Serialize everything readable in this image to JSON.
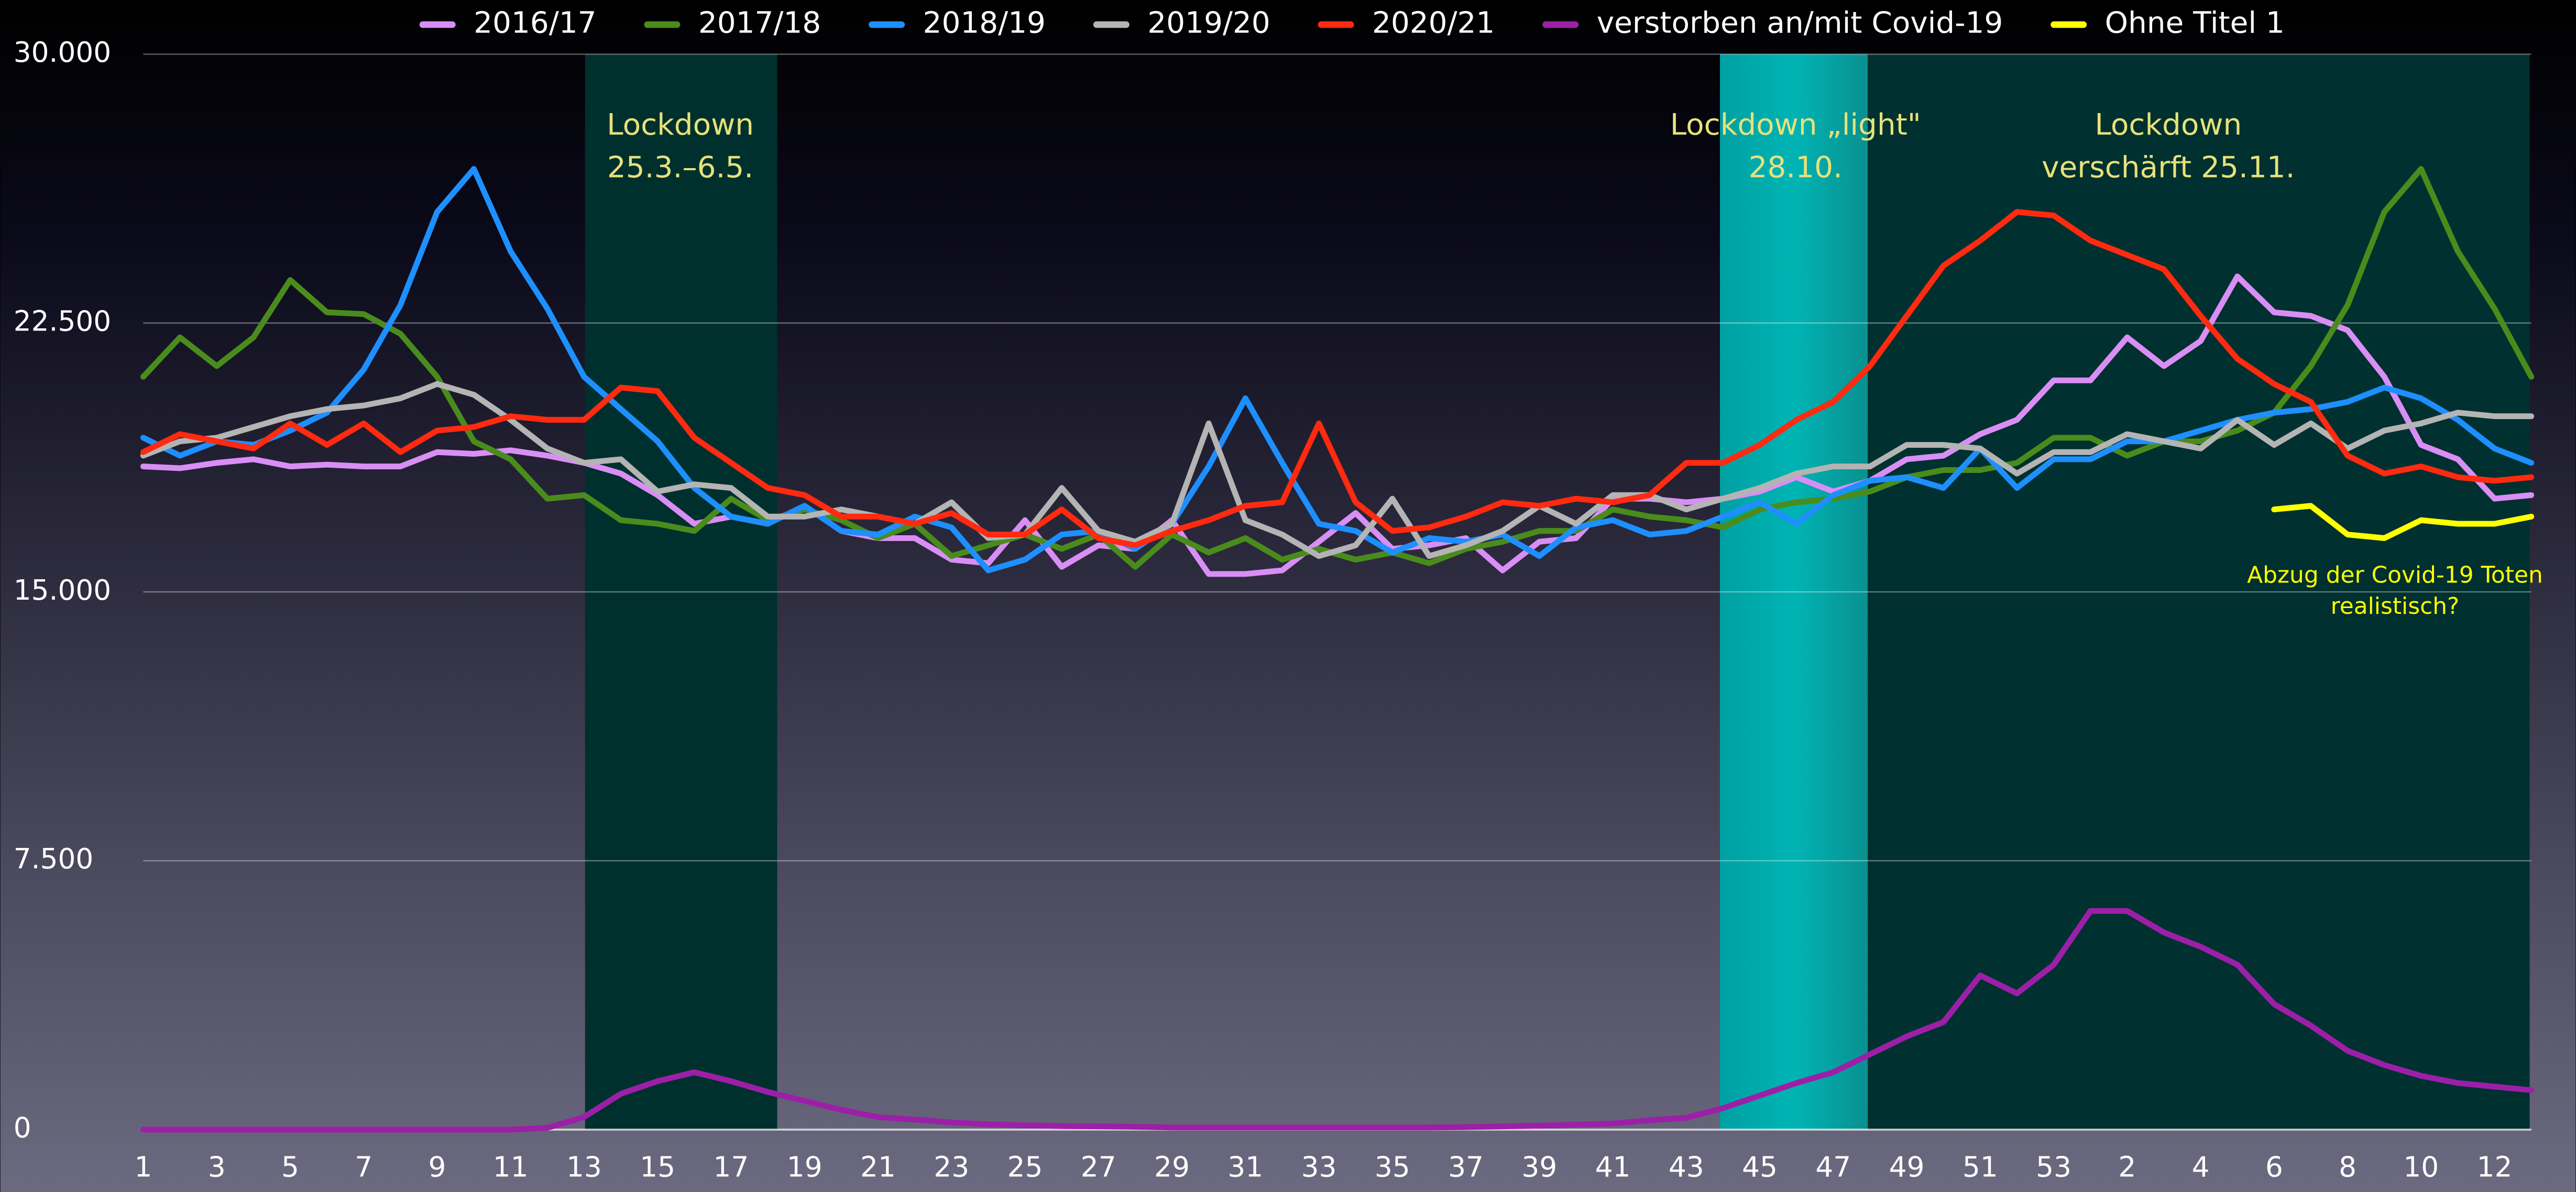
{
  "chart_data": {
    "type": "line",
    "categories": [
      1,
      null,
      3,
      null,
      5,
      null,
      7,
      null,
      9,
      null,
      11,
      null,
      13,
      null,
      15,
      null,
      17,
      null,
      19,
      null,
      21,
      null,
      23,
      null,
      25,
      null,
      27,
      null,
      29,
      null,
      31,
      null,
      33,
      null,
      35,
      null,
      37,
      null,
      39,
      null,
      41,
      null,
      43,
      null,
      45,
      null,
      47,
      null,
      49,
      null,
      51,
      null,
      53,
      null,
      2,
      null,
      4,
      null,
      6,
      null,
      8,
      null,
      10,
      null,
      12,
      null
    ],
    "ylim": [
      0,
      30000
    ],
    "yticks": [
      0,
      {
        "value": 7500,
        "label": "7.500"
      },
      {
        "value": 15000,
        "label": "15.000"
      },
      {
        "value": 22500,
        "label": "22.500"
      },
      {
        "value": 30000,
        "label": "30.000"
      }
    ],
    "grid": true,
    "legend": "top",
    "series": [
      {
        "name": "2016/17",
        "color": "#d98ef5",
        "values": [
          18500,
          18450,
          18600,
          18700,
          18500,
          18550,
          18500,
          18500,
          18900,
          18850,
          18950,
          18800,
          18600,
          18300,
          17700,
          16900,
          17100,
          16900,
          17400,
          16700,
          16500,
          16500,
          15900,
          15800,
          17000,
          15700,
          16300,
          16200,
          17000,
          15500,
          15500,
          15600,
          16400,
          17200,
          16200,
          16300,
          16500,
          15600,
          16400,
          16500,
          17600,
          17600,
          17500,
          17600,
          17800,
          18200,
          17800,
          18100,
          18700,
          18800,
          19400,
          19800,
          20900,
          20900,
          22100,
          21300,
          22000,
          23800,
          22800,
          22700,
          22300,
          21000,
          19100,
          18700,
          17600,
          17700
        ]
      },
      {
        "name": "2017/18",
        "color": "#4a8c1c",
        "values": [
          21000,
          22100,
          21300,
          22100,
          23700,
          22800,
          22750,
          22200,
          21000,
          19200,
          18700,
          17600,
          17700,
          17000,
          16900,
          16700,
          17600,
          17000,
          17300,
          17000,
          16500,
          16900,
          16000,
          16300,
          16600,
          16200,
          16600,
          15700,
          16600,
          16100,
          16500,
          15900,
          16200,
          15900,
          16100,
          15800,
          16200,
          16400,
          16700,
          16700,
          17300,
          17100,
          17000,
          16800,
          17300,
          17500,
          17600,
          17800,
          18200,
          18400,
          18400,
          18600,
          19300,
          19300,
          18800,
          19200,
          19200,
          19500,
          20000,
          21300,
          23000,
          25600,
          26800,
          24500,
          22900,
          21000
        ]
      },
      {
        "name": "2018/19",
        "color": "#1e8fff",
        "values": [
          19300,
          18800,
          19200,
          19100,
          19500,
          20000,
          21200,
          23000,
          25600,
          26800,
          24500,
          22900,
          21000,
          20100,
          19200,
          17900,
          17100,
          16900,
          17400,
          16700,
          16600,
          17100,
          16800,
          15600,
          15900,
          16600,
          16700,
          16200,
          16900,
          18500,
          20400,
          18600,
          16900,
          16700,
          16100,
          16500,
          16400,
          16600,
          16000,
          16800,
          17000,
          16600,
          16700,
          17100,
          17500,
          16900,
          17700,
          18100,
          18200,
          17900,
          19000,
          17900,
          18700,
          18700,
          19200,
          19200,
          19500,
          19800,
          20000,
          20100,
          20300,
          20700,
          20400,
          19800,
          19000,
          18600
        ]
      },
      {
        "name": "2019/20",
        "color": "#b4b4b4",
        "values": [
          18800,
          19200,
          19300,
          19600,
          19900,
          20100,
          20200,
          20400,
          20800,
          20500,
          19800,
          19000,
          18600,
          18700,
          17800,
          18000,
          17900,
          17100,
          17100,
          17300,
          17100,
          16900,
          17500,
          16500,
          16600,
          17900,
          16700,
          16400,
          16900,
          19700,
          17000,
          16600,
          16000,
          16300,
          17600,
          16000,
          16300,
          16700,
          17400,
          16900,
          17700,
          17700,
          17300,
          17600,
          17900,
          18300,
          18500,
          18500,
          19100,
          19100,
          19000,
          18300,
          18900,
          18900,
          19400,
          19200,
          19000,
          19800,
          19100,
          19700,
          19000,
          19500,
          19700,
          20000,
          19900,
          19900
        ]
      },
      {
        "name": "2020/21",
        "color": "#ff2a10",
        "values": [
          18900,
          19400,
          19200,
          19000,
          19700,
          19100,
          19700,
          18900,
          19500,
          19600,
          19900,
          19800,
          19800,
          20700,
          20600,
          19300,
          18600,
          17900,
          17700,
          17100,
          17100,
          16900,
          17200,
          16600,
          16600,
          17300,
          16500,
          16300,
          16700,
          17000,
          17400,
          17500,
          19700,
          17500,
          16700,
          16800,
          17100,
          17500,
          17400,
          17600,
          17500,
          17700,
          18600,
          18600,
          19100,
          19800,
          20300,
          21300,
          22700,
          24100,
          24800,
          25600,
          25500,
          24800,
          24400,
          24000,
          22700,
          21500,
          20800,
          20300,
          18800,
          18300,
          18500,
          18200,
          18100,
          18200
        ]
      },
      {
        "name": "verstorben an/mit Covid-19",
        "color": "#9c1fa8",
        "values": [
          0,
          0,
          0,
          0,
          0,
          0,
          0,
          0,
          0,
          0,
          0,
          50,
          350,
          1000,
          1350,
          1600,
          1350,
          1050,
          800,
          550,
          350,
          280,
          200,
          150,
          120,
          100,
          90,
          80,
          60,
          60,
          60,
          60,
          60,
          60,
          60,
          60,
          70,
          90,
          110,
          140,
          170,
          260,
          330,
          600,
          950,
          1300,
          1600,
          2100,
          2600,
          3000,
          4300,
          3800,
          4600,
          6100,
          6100,
          5500,
          5100,
          4600,
          3500,
          2900,
          2200,
          1800,
          1500,
          1300,
          1200,
          1100
        ]
      },
      {
        "name": "Ohne Titel 1",
        "color": "#ffff00",
        "values": [
          null,
          null,
          null,
          null,
          null,
          null,
          null,
          null,
          null,
          null,
          null,
          null,
          null,
          null,
          null,
          null,
          null,
          null,
          null,
          null,
          null,
          null,
          null,
          null,
          null,
          null,
          null,
          null,
          null,
          null,
          null,
          null,
          null,
          null,
          null,
          null,
          null,
          null,
          null,
          null,
          null,
          null,
          null,
          null,
          null,
          null,
          null,
          null,
          null,
          null,
          null,
          null,
          null,
          null,
          null,
          null,
          null,
          null,
          17300,
          17400,
          16600,
          16500,
          17000,
          16900,
          16900,
          17100
        ]
      }
    ],
    "annotations": [
      {
        "text": [
          "Lockdown",
          "25.3.–6.5."
        ]
      },
      {
        "text": [
          "Lockdown „light\"",
          "28.10."
        ]
      },
      {
        "text": [
          "Lockdown",
          "verschärft 25.11."
        ]
      },
      {
        "text": [
          "Abzug der Covid-19 Toten",
          "realistisch?"
        ]
      }
    ]
  }
}
